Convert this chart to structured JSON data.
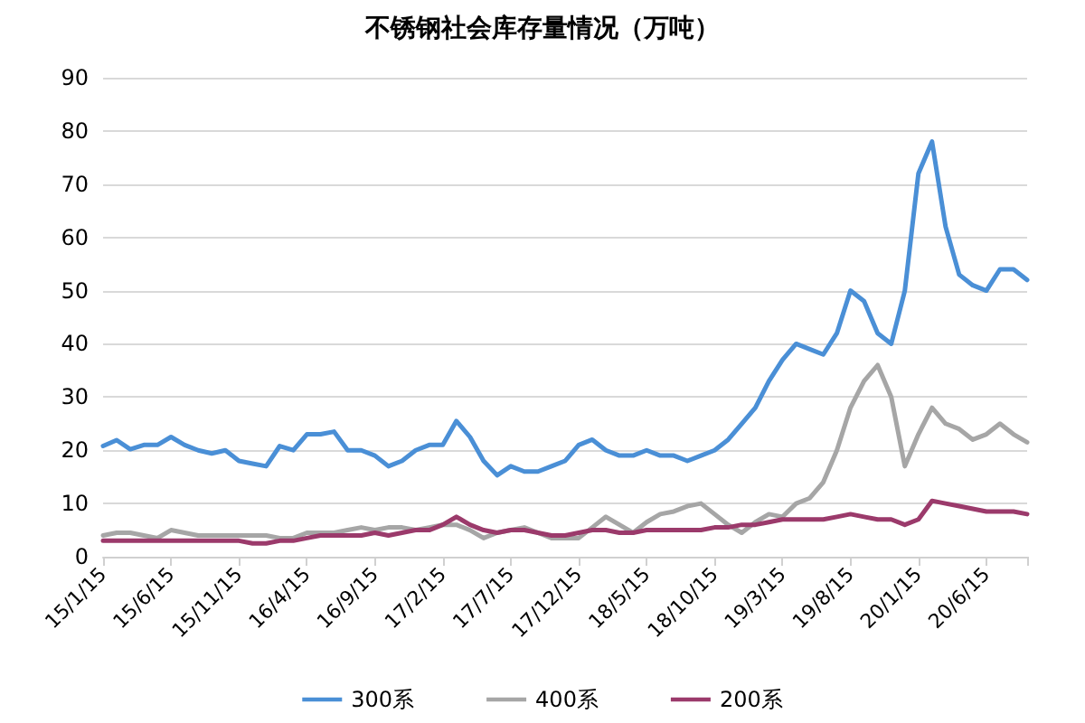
{
  "chart_data": {
    "type": "line",
    "title": "不锈钢社会库存量情况（万吨）",
    "categories": [
      "15/1/15",
      null,
      null,
      null,
      null,
      "15/6/15",
      null,
      null,
      null,
      null,
      "15/11/15",
      null,
      null,
      null,
      null,
      "16/4/15",
      null,
      null,
      null,
      null,
      "16/9/15",
      null,
      null,
      null,
      null,
      "17/2/15",
      null,
      null,
      null,
      null,
      "17/7/15",
      null,
      null,
      null,
      null,
      "17/12/15",
      null,
      null,
      null,
      null,
      "18/5/15",
      null,
      null,
      null,
      null,
      "18/10/15",
      null,
      null,
      null,
      null,
      "19/3/15",
      null,
      null,
      null,
      null,
      "19/8/15",
      null,
      null,
      null,
      null,
      "20/1/15",
      null,
      null,
      null,
      null,
      "20/6/15",
      null,
      null,
      null
    ],
    "series": [
      {
        "name": "300系",
        "color": "#4a8fd6",
        "values": [
          20.8,
          21.9,
          20.2,
          21,
          21,
          22.5,
          21,
          20,
          19.4,
          20,
          18,
          17.5,
          17,
          20.8,
          20,
          23,
          23,
          23.5,
          20,
          20,
          19,
          17,
          18,
          20,
          21,
          21,
          25.5,
          22.5,
          18,
          15.3,
          17,
          16,
          16,
          17,
          18,
          21,
          22,
          20,
          19,
          19,
          20,
          19,
          19,
          18,
          19,
          20,
          22,
          25,
          28,
          33,
          37,
          40,
          39,
          38,
          42,
          50,
          48,
          42,
          40,
          50,
          72,
          78,
          62,
          53,
          51,
          50,
          54,
          54,
          52
        ]
      },
      {
        "name": "400系",
        "color": "#a6a6a6",
        "values": [
          4,
          4.5,
          4.5,
          4,
          3.5,
          5,
          4.5,
          4,
          4,
          4,
          4,
          4,
          4,
          3.5,
          3.5,
          4.5,
          4.5,
          4.5,
          5,
          5.5,
          5,
          5.5,
          5.5,
          5,
          5.5,
          6,
          6,
          5,
          3.5,
          4.5,
          5,
          5.5,
          4.5,
          3.5,
          3.5,
          3.5,
          5.5,
          7.5,
          6,
          4.5,
          6.5,
          8,
          8.5,
          9.5,
          10,
          8,
          6,
          4.5,
          6.5,
          8,
          7.5,
          10,
          11,
          14,
          20,
          28,
          33,
          36,
          30,
          17,
          23,
          28,
          25,
          24,
          22,
          23,
          25,
          23,
          21.5
        ]
      },
      {
        "name": "200系",
        "color": "#9b3a6b",
        "values": [
          3,
          3,
          3,
          3,
          3,
          3,
          3,
          3,
          3,
          3,
          3,
          2.5,
          2.5,
          3,
          3,
          3.5,
          4,
          4,
          4,
          4,
          4.5,
          4,
          4.5,
          5,
          5,
          6,
          7.5,
          6,
          5,
          4.5,
          5,
          5,
          4.5,
          4,
          4,
          4.5,
          5,
          5,
          4.5,
          4.5,
          5,
          5,
          5,
          5,
          5,
          5.5,
          5.5,
          6,
          6,
          6.5,
          7,
          7,
          7,
          7,
          7.5,
          8,
          7.5,
          7,
          7,
          6,
          7,
          10.5,
          10,
          9.5,
          9,
          8.5,
          8.5,
          8.5,
          8
        ]
      }
    ],
    "ylim": [
      0,
      90
    ],
    "yticks": [
      0,
      10,
      20,
      30,
      40,
      50,
      60,
      70,
      80,
      90
    ],
    "grid": "y",
    "legend": "bottom",
    "marker": "none"
  }
}
